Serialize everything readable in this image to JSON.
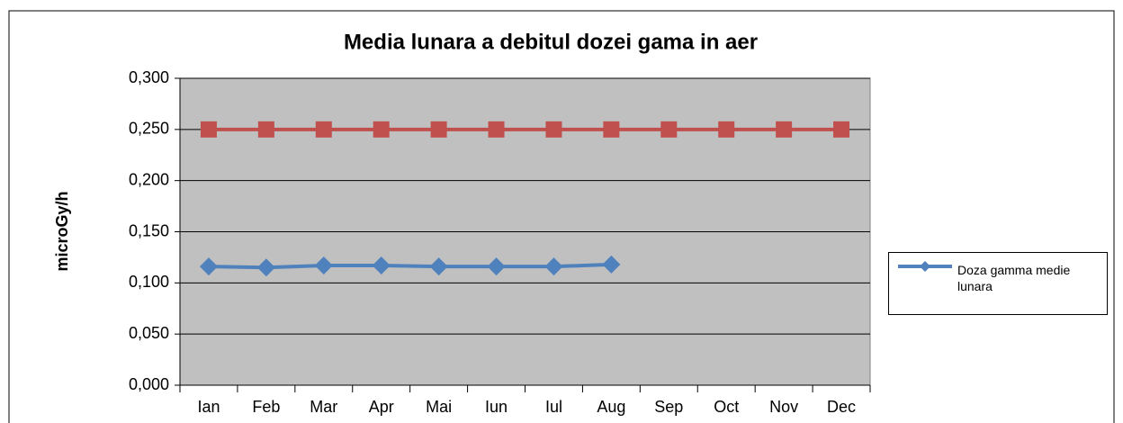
{
  "chart_data": {
    "type": "line",
    "title": "Media lunara a debitul dozei gama in aer",
    "y_label": "microGy/h",
    "categories": [
      "Ian",
      "Feb",
      "Mar",
      "Apr",
      "Mai",
      "Iun",
      "Iul",
      "Aug",
      "Sep",
      "Oct",
      "Nov",
      "Dec"
    ],
    "series": [
      {
        "name": "Doza gamma medie lunara",
        "color": "#4f81bd",
        "marker": "diamond",
        "values": [
          0.116,
          0.115,
          0.117,
          0.117,
          0.116,
          0.116,
          0.116,
          0.118,
          null,
          null,
          null,
          null
        ]
      },
      {
        "color": "#c0504d",
        "marker": "square",
        "values": [
          0.25,
          0.25,
          0.25,
          0.25,
          0.25,
          0.25,
          0.25,
          0.25,
          0.25,
          0.25,
          0.25,
          0.25
        ]
      }
    ],
    "ylim": [
      0,
      0.3
    ],
    "yticks": [
      {
        "value": 0,
        "label": "0,000"
      },
      {
        "value": 0.05,
        "label": "0,050"
      },
      {
        "value": 0.1,
        "label": "0,100"
      },
      {
        "value": 0.15,
        "label": "0,150"
      },
      {
        "value": 0.2,
        "label": "0,200"
      },
      {
        "value": 0.25,
        "label": "0,250"
      },
      {
        "value": 0.3,
        "label": "0,300"
      }
    ],
    "grid": true,
    "legend": "right"
  }
}
